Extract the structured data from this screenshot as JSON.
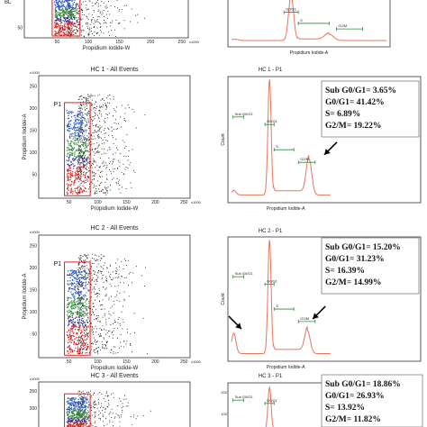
{
  "chart_data": [
    {
      "type": "scatter",
      "title": "",
      "xlabel": "Propidium Iodide-W",
      "ylabel": "",
      "x_ticks": [
        "50",
        "100",
        "150",
        "200",
        "250"
      ],
      "y_ticks": [
        "50"
      ],
      "x_unit": "x1000",
      "gate": "",
      "side_label": "BL"
    },
    {
      "type": "line",
      "title": "",
      "xlabel": "Propidium Iodide-A",
      "ylabel": "",
      "peaks": [
        {
          "x": 50,
          "y": 1.0
        },
        {
          "x": 82,
          "y": 0.14
        }
      ],
      "markers": [
        "G0/G1",
        "S",
        "G2/M"
      ],
      "stats": []
    },
    {
      "type": "scatter",
      "title": "HC 1 - All Events",
      "xlabel": "Propidium Iodide-W",
      "ylabel": "Propidium Iodide-A",
      "x_ticks": [
        "50",
        "100",
        "150",
        "200",
        "250"
      ],
      "y_ticks": [
        "50",
        "100",
        "150",
        "200",
        "250"
      ],
      "x_unit": "x1000",
      "y_unit": "x1000",
      "gate": "P1"
    },
    {
      "type": "line",
      "title": "HC 1 - P1",
      "xlabel": "Propidium Iodide-A",
      "ylabel": "Count",
      "peaks": [
        {
          "x": 50,
          "y": 1.0
        },
        {
          "x": 102,
          "y": 0.31
        }
      ],
      "markers": [
        "Sub G0/G1",
        "G0/G1",
        "S",
        "G2/M"
      ],
      "stats": [
        "Sub G0/G1= 3.65%",
        "G0/G1= 41.42%",
        "S= 6.89%",
        "G2/M= 19.22%"
      ]
    },
    {
      "type": "scatter",
      "title": "HC 2 - All Events",
      "xlabel": "Propidium Iodide-W",
      "ylabel": "Propidium Iodide-A",
      "x_ticks": [
        "50",
        "100",
        "150",
        "200",
        "250"
      ],
      "y_ticks": [
        "50",
        "100",
        "150",
        "200",
        "250"
      ],
      "x_unit": "x1000",
      "y_unit": "x1000",
      "gate": "P1"
    },
    {
      "type": "line",
      "title": "HC 2 - P1",
      "xlabel": "Propidium Iodide-A",
      "ylabel": "Count",
      "peaks": [
        {
          "x": 50,
          "y": 1.0
        },
        {
          "x": 100,
          "y": 0.2
        }
      ],
      "markers": [
        "Sub G0/G1",
        "G0/G1",
        "S",
        "G2/M"
      ],
      "stats": [
        "Sub G0/G1= 15.20%",
        "G0/G1= 31.23%",
        "S= 16.39%",
        "G2/M= 14.99%"
      ]
    },
    {
      "type": "scatter",
      "title": "HC 3 - All Events",
      "xlabel": "",
      "ylabel": "",
      "x_ticks": [],
      "y_ticks": [
        "250",
        "200"
      ],
      "y_unit": "x1000",
      "gate": ""
    },
    {
      "type": "line",
      "title": "HC 3 - P1",
      "xlabel": "",
      "ylabel": "",
      "peaks": [
        {
          "x": 50,
          "y": 1.0
        }
      ],
      "markers": [
        "Sub G0/G1",
        "G0/G1"
      ],
      "stats": [
        "Sub G0/G1= 18.86%",
        "G0/G1= 26.93%",
        "S= 13.92%",
        "G2/M= 11.82%"
      ],
      "y_ticks": [
        "200",
        "100"
      ]
    }
  ],
  "colors": {
    "histogram": "#e8745a",
    "gate": "#e02020",
    "dots_blue": "#2b59c3",
    "dots_green": "#2f8a3a",
    "dots_purple": "#3c2f8f",
    "dots_red": "#d22a2a",
    "arrow": "#000000"
  }
}
